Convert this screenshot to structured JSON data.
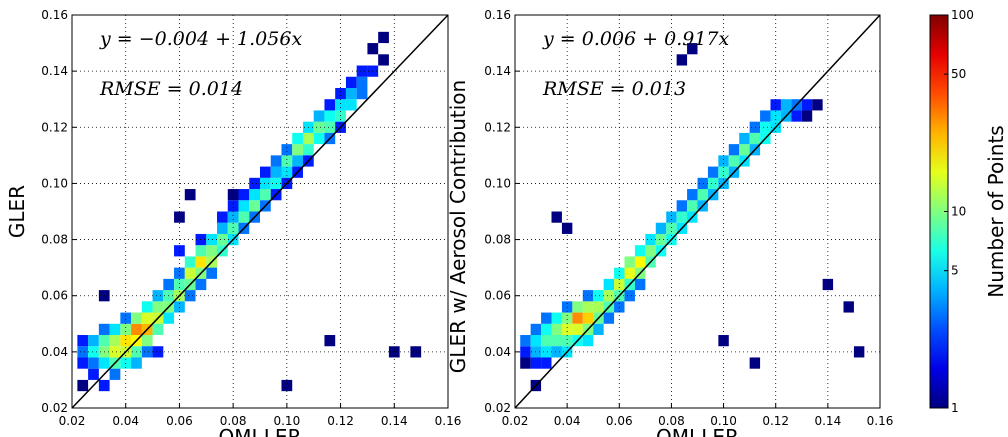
{
  "chart_data": [
    {
      "type": "heatmap",
      "xlabel": "OMI LER",
      "ylabel": "GLER",
      "annotations": [
        "y = −0.004 + 1.056x",
        "RMSE = 0.014"
      ],
      "xlim": [
        0.02,
        0.16
      ],
      "ylim": [
        0.02,
        0.16
      ],
      "xticks": [
        0.02,
        0.04,
        0.06,
        0.08,
        {
          "value": 0.1,
          "label": "0.10"
        },
        0.12,
        0.14,
        0.16
      ],
      "yticks": [
        0.02,
        0.04,
        0.06,
        0.08,
        {
          "value": 0.1,
          "label": "0.10"
        },
        0.12,
        0.14,
        0.16
      ],
      "grid": true,
      "colormap": "jet",
      "cells": [
        [
          0.024,
          0.04,
          3
        ],
        [
          0.024,
          0.036,
          2
        ],
        [
          0.024,
          0.044,
          2
        ],
        [
          0.024,
          0.028,
          1
        ],
        [
          0.028,
          0.04,
          6
        ],
        [
          0.028,
          0.044,
          4
        ],
        [
          0.028,
          0.036,
          3
        ],
        [
          0.028,
          0.032,
          2
        ],
        [
          0.032,
          0.04,
          10
        ],
        [
          0.032,
          0.044,
          8
        ],
        [
          0.032,
          0.036,
          5
        ],
        [
          0.032,
          0.048,
          3
        ],
        [
          0.032,
          0.028,
          2
        ],
        [
          0.036,
          0.04,
          15
        ],
        [
          0.036,
          0.044,
          12
        ],
        [
          0.036,
          0.036,
          8
        ],
        [
          0.036,
          0.048,
          5
        ],
        [
          0.036,
          0.032,
          3
        ],
        [
          0.04,
          0.044,
          20
        ],
        [
          0.04,
          0.04,
          14
        ],
        [
          0.04,
          0.048,
          10
        ],
        [
          0.04,
          0.036,
          6
        ],
        [
          0.04,
          0.052,
          3
        ],
        [
          0.044,
          0.048,
          30
        ],
        [
          0.044,
          0.044,
          18
        ],
        [
          0.044,
          0.052,
          10
        ],
        [
          0.044,
          0.04,
          8
        ],
        [
          0.044,
          0.036,
          4
        ],
        [
          0.048,
          0.048,
          25
        ],
        [
          0.048,
          0.052,
          15
        ],
        [
          0.048,
          0.044,
          10
        ],
        [
          0.048,
          0.056,
          6
        ],
        [
          0.048,
          0.04,
          3
        ],
        [
          0.052,
          0.052,
          14
        ],
        [
          0.052,
          0.056,
          10
        ],
        [
          0.052,
          0.048,
          8
        ],
        [
          0.052,
          0.06,
          4
        ],
        [
          0.052,
          0.04,
          2
        ],
        [
          0.056,
          0.056,
          10
        ],
        [
          0.056,
          0.06,
          8
        ],
        [
          0.056,
          0.052,
          5
        ],
        [
          0.056,
          0.064,
          3
        ],
        [
          0.06,
          0.06,
          12
        ],
        [
          0.06,
          0.064,
          8
        ],
        [
          0.06,
          0.056,
          4
        ],
        [
          0.06,
          0.068,
          3
        ],
        [
          0.06,
          0.076,
          2
        ],
        [
          0.064,
          0.068,
          14
        ],
        [
          0.064,
          0.064,
          9
        ],
        [
          0.064,
          0.072,
          7
        ],
        [
          0.064,
          0.06,
          3
        ],
        [
          0.068,
          0.072,
          20
        ],
        [
          0.068,
          0.068,
          10
        ],
        [
          0.068,
          0.076,
          8
        ],
        [
          0.068,
          0.064,
          3
        ],
        [
          0.068,
          0.08,
          2
        ],
        [
          0.072,
          0.072,
          12
        ],
        [
          0.072,
          0.076,
          10
        ],
        [
          0.072,
          0.08,
          5
        ],
        [
          0.072,
          0.068,
          3
        ],
        [
          0.076,
          0.08,
          9
        ],
        [
          0.076,
          0.076,
          7
        ],
        [
          0.076,
          0.084,
          4
        ],
        [
          0.076,
          0.088,
          2
        ],
        [
          0.08,
          0.084,
          8
        ],
        [
          0.08,
          0.08,
          5
        ],
        [
          0.08,
          0.088,
          4
        ],
        [
          0.08,
          0.092,
          2
        ],
        [
          0.08,
          0.096,
          1
        ],
        [
          0.084,
          0.088,
          8
        ],
        [
          0.084,
          0.092,
          5
        ],
        [
          0.084,
          0.084,
          3
        ],
        [
          0.084,
          0.096,
          2
        ],
        [
          0.088,
          0.092,
          9
        ],
        [
          0.088,
          0.096,
          5
        ],
        [
          0.088,
          0.088,
          3
        ],
        [
          0.088,
          0.1,
          2
        ],
        [
          0.092,
          0.096,
          8
        ],
        [
          0.092,
          0.1,
          5
        ],
        [
          0.092,
          0.092,
          3
        ],
        [
          0.092,
          0.104,
          2
        ],
        [
          0.096,
          0.1,
          6
        ],
        [
          0.096,
          0.104,
          4
        ],
        [
          0.096,
          0.108,
          3
        ],
        [
          0.096,
          0.096,
          2
        ],
        [
          0.1,
          0.108,
          8
        ],
        [
          0.1,
          0.104,
          5
        ],
        [
          0.1,
          0.112,
          3
        ],
        [
          0.1,
          0.1,
          2
        ],
        [
          0.104,
          0.112,
          10
        ],
        [
          0.104,
          0.116,
          6
        ],
        [
          0.104,
          0.108,
          4
        ],
        [
          0.104,
          0.104,
          2
        ],
        [
          0.108,
          0.116,
          12
        ],
        [
          0.108,
          0.112,
          7
        ],
        [
          0.108,
          0.12,
          5
        ],
        [
          0.108,
          0.108,
          2
        ],
        [
          0.112,
          0.12,
          9
        ],
        [
          0.112,
          0.116,
          6
        ],
        [
          0.112,
          0.124,
          4
        ],
        [
          0.116,
          0.12,
          8
        ],
        [
          0.116,
          0.124,
          6
        ],
        [
          0.116,
          0.116,
          3
        ],
        [
          0.116,
          0.128,
          2
        ],
        [
          0.12,
          0.124,
          7
        ],
        [
          0.12,
          0.128,
          5
        ],
        [
          0.12,
          0.132,
          2
        ],
        [
          0.12,
          0.12,
          2
        ],
        [
          0.124,
          0.128,
          5
        ],
        [
          0.124,
          0.132,
          4
        ],
        [
          0.124,
          0.136,
          2
        ],
        [
          0.128,
          0.136,
          3
        ],
        [
          0.128,
          0.132,
          3
        ],
        [
          0.128,
          0.14,
          2
        ],
        [
          0.132,
          0.14,
          2
        ],
        [
          0.132,
          0.148,
          1
        ],
        [
          0.136,
          0.152,
          1
        ],
        [
          0.136,
          0.144,
          1
        ],
        [
          0.1,
          0.028,
          1
        ],
        [
          0.14,
          0.04,
          1
        ],
        [
          0.148,
          0.04,
          1
        ],
        [
          0.116,
          0.044,
          1
        ],
        [
          0.06,
          0.088,
          1
        ],
        [
          0.064,
          0.096,
          1
        ],
        [
          0.032,
          0.06,
          1
        ]
      ]
    },
    {
      "type": "heatmap",
      "xlabel": "OMI LER",
      "ylabel": "GLER w/ Aerosol Contribution",
      "annotations": [
        "y = 0.006 + 0.917x",
        "RMSE = 0.013"
      ],
      "xlim": [
        0.02,
        0.16
      ],
      "ylim": [
        0.02,
        0.16
      ],
      "xticks": [
        0.02,
        0.04,
        0.06,
        0.08,
        {
          "value": 0.1,
          "label": "0.10"
        },
        0.12,
        0.14,
        0.16
      ],
      "yticks": [
        0.02,
        0.04,
        0.06,
        0.08,
        {
          "value": 0.1,
          "label": "0.10"
        },
        0.12,
        0.14,
        0.16
      ],
      "grid": true,
      "colormap": "jet",
      "colorbar": {
        "label": "Number of  Points",
        "lim": [
          1,
          100
        ],
        "ticks": [
          1,
          5,
          10,
          50,
          100
        ],
        "log": true
      },
      "cells": [
        [
          0.024,
          0.04,
          2
        ],
        [
          0.024,
          0.044,
          3
        ],
        [
          0.024,
          0.036,
          1
        ],
        [
          0.028,
          0.04,
          4
        ],
        [
          0.028,
          0.044,
          5
        ],
        [
          0.028,
          0.048,
          3
        ],
        [
          0.028,
          0.036,
          2
        ],
        [
          0.028,
          0.028,
          1
        ],
        [
          0.032,
          0.044,
          8
        ],
        [
          0.032,
          0.048,
          6
        ],
        [
          0.032,
          0.04,
          5
        ],
        [
          0.032,
          0.052,
          3
        ],
        [
          0.032,
          0.036,
          2
        ],
        [
          0.036,
          0.048,
          10
        ],
        [
          0.036,
          0.044,
          8
        ],
        [
          0.036,
          0.052,
          6
        ],
        [
          0.036,
          0.04,
          4
        ],
        [
          0.04,
          0.048,
          15
        ],
        [
          0.04,
          0.052,
          10
        ],
        [
          0.04,
          0.044,
          8
        ],
        [
          0.04,
          0.04,
          5
        ],
        [
          0.04,
          0.056,
          3
        ],
        [
          0.044,
          0.052,
          30
        ],
        [
          0.044,
          0.048,
          15
        ],
        [
          0.044,
          0.056,
          10
        ],
        [
          0.044,
          0.044,
          6
        ],
        [
          0.048,
          0.052,
          22
        ],
        [
          0.048,
          0.056,
          12
        ],
        [
          0.048,
          0.048,
          10
        ],
        [
          0.048,
          0.044,
          5
        ],
        [
          0.048,
          0.06,
          3
        ],
        [
          0.052,
          0.056,
          12
        ],
        [
          0.052,
          0.052,
          9
        ],
        [
          0.052,
          0.06,
          6
        ],
        [
          0.052,
          0.048,
          4
        ],
        [
          0.056,
          0.06,
          12
        ],
        [
          0.056,
          0.056,
          8
        ],
        [
          0.056,
          0.064,
          5
        ],
        [
          0.056,
          0.052,
          3
        ],
        [
          0.06,
          0.064,
          14
        ],
        [
          0.06,
          0.06,
          8
        ],
        [
          0.06,
          0.068,
          6
        ],
        [
          0.06,
          0.056,
          3
        ],
        [
          0.064,
          0.068,
          16
        ],
        [
          0.064,
          0.072,
          10
        ],
        [
          0.064,
          0.064,
          7
        ],
        [
          0.064,
          0.06,
          3
        ],
        [
          0.068,
          0.072,
          18
        ],
        [
          0.068,
          0.068,
          10
        ],
        [
          0.068,
          0.076,
          6
        ],
        [
          0.068,
          0.064,
          3
        ],
        [
          0.072,
          0.076,
          10
        ],
        [
          0.072,
          0.072,
          8
        ],
        [
          0.072,
          0.08,
          5
        ],
        [
          0.076,
          0.08,
          9
        ],
        [
          0.076,
          0.076,
          6
        ],
        [
          0.076,
          0.084,
          4
        ],
        [
          0.08,
          0.084,
          8
        ],
        [
          0.08,
          0.08,
          6
        ],
        [
          0.08,
          0.088,
          4
        ],
        [
          0.084,
          0.088,
          7
        ],
        [
          0.084,
          0.084,
          5
        ],
        [
          0.084,
          0.092,
          3
        ],
        [
          0.088,
          0.092,
          8
        ],
        [
          0.088,
          0.088,
          5
        ],
        [
          0.088,
          0.096,
          3
        ],
        [
          0.092,
          0.096,
          8
        ],
        [
          0.092,
          0.092,
          4
        ],
        [
          0.092,
          0.1,
          3
        ],
        [
          0.096,
          0.1,
          7
        ],
        [
          0.096,
          0.096,
          4
        ],
        [
          0.096,
          0.104,
          3
        ],
        [
          0.1,
          0.104,
          7
        ],
        [
          0.1,
          0.1,
          4
        ],
        [
          0.1,
          0.108,
          4
        ],
        [
          0.104,
          0.108,
          8
        ],
        [
          0.104,
          0.104,
          4
        ],
        [
          0.104,
          0.112,
          3
        ],
        [
          0.108,
          0.112,
          9
        ],
        [
          0.108,
          0.108,
          5
        ],
        [
          0.108,
          0.116,
          4
        ],
        [
          0.112,
          0.116,
          8
        ],
        [
          0.112,
          0.112,
          4
        ],
        [
          0.112,
          0.12,
          3
        ],
        [
          0.116,
          0.116,
          6
        ],
        [
          0.116,
          0.12,
          6
        ],
        [
          0.116,
          0.124,
          3
        ],
        [
          0.12,
          0.12,
          5
        ],
        [
          0.12,
          0.124,
          5
        ],
        [
          0.12,
          0.128,
          2
        ],
        [
          0.124,
          0.124,
          4
        ],
        [
          0.124,
          0.128,
          4
        ],
        [
          0.128,
          0.128,
          3
        ],
        [
          0.128,
          0.124,
          2
        ],
        [
          0.132,
          0.128,
          2
        ],
        [
          0.132,
          0.124,
          1
        ],
        [
          0.136,
          0.128,
          1
        ],
        [
          0.036,
          0.088,
          1
        ],
        [
          0.04,
          0.084,
          1
        ],
        [
          0.14,
          0.064,
          1
        ],
        [
          0.148,
          0.056,
          1
        ],
        [
          0.152,
          0.04,
          1
        ],
        [
          0.112,
          0.036,
          1
        ],
        [
          0.1,
          0.044,
          1
        ],
        [
          0.084,
          0.144,
          1
        ],
        [
          0.088,
          0.148,
          1
        ]
      ]
    }
  ]
}
